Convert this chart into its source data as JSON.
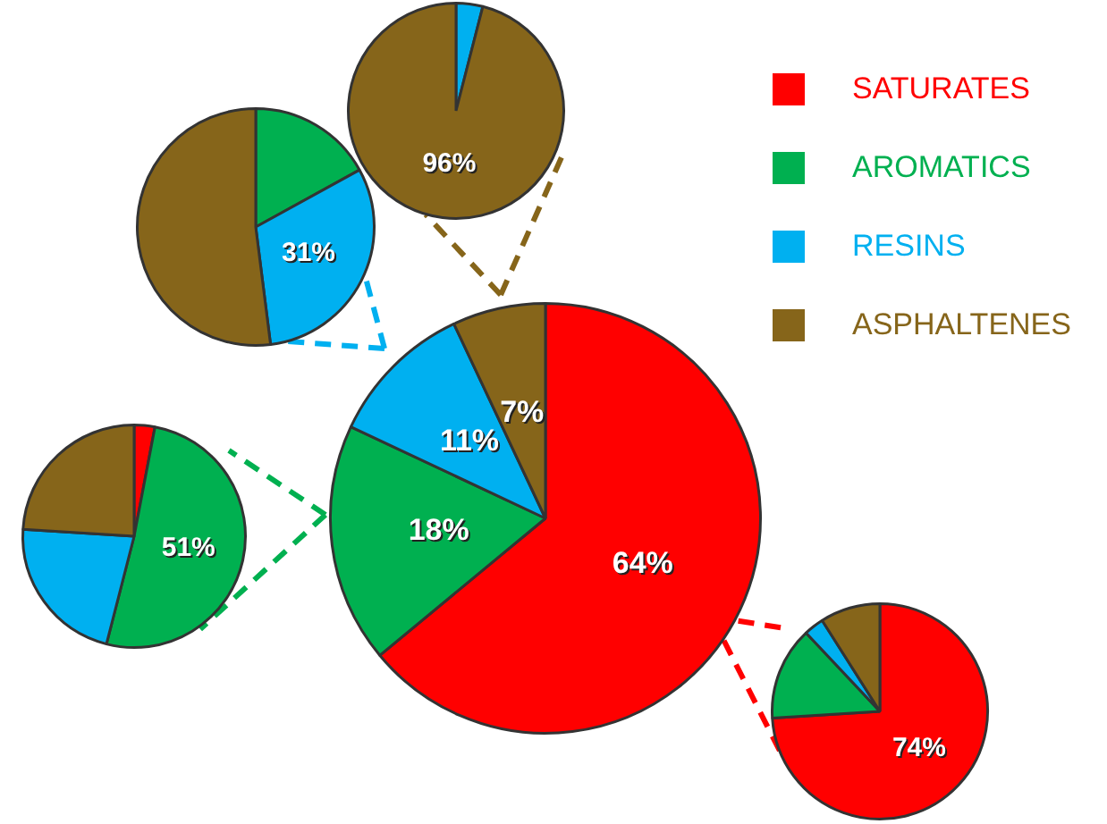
{
  "chart_data": [
    {
      "type": "pie",
      "categories": [
        "SATURATES",
        "AROMATICS",
        "RESINS",
        "ASPHALTENES"
      ],
      "values": [
        64,
        18,
        11,
        7
      ],
      "colors": [
        "#ff0000",
        "#00b050",
        "#00b0f0",
        "#86651a"
      ],
      "value_labels": [
        "64%",
        "18%",
        "11%",
        "7%"
      ],
      "legend": "top right"
    },
    {
      "type": "pie",
      "categories": [
        null,
        null,
        null,
        null
      ],
      "values": [
        0,
        0,
        4,
        96
      ],
      "colors": [
        "#ff0000",
        "#00b050",
        "#00b0f0",
        "#86651a"
      ],
      "value_labels": [
        null,
        null,
        null,
        "96%"
      ]
    },
    {
      "type": "pie",
      "categories": [
        null,
        null,
        null,
        null
      ],
      "values": [
        0,
        17,
        31,
        52
      ],
      "colors": [
        "#ff0000",
        "#00b050",
        "#00b0f0",
        "#86651a"
      ],
      "value_labels": [
        null,
        null,
        "31%",
        null
      ]
    },
    {
      "type": "pie",
      "categories": [
        null,
        null,
        null,
        null
      ],
      "values": [
        3,
        51,
        22,
        24
      ],
      "colors": [
        "#ff0000",
        "#00b050",
        "#00b0f0",
        "#86651a"
      ],
      "value_labels": [
        null,
        "51%",
        null,
        null
      ]
    },
    {
      "type": "pie",
      "categories": [
        null,
        null,
        null,
        null
      ],
      "values": [
        74,
        14,
        3,
        9
      ],
      "colors": [
        "#ff0000",
        "#00b050",
        "#00b0f0",
        "#86651a"
      ],
      "value_labels": [
        "74%",
        null,
        null,
        null
      ]
    }
  ]
}
